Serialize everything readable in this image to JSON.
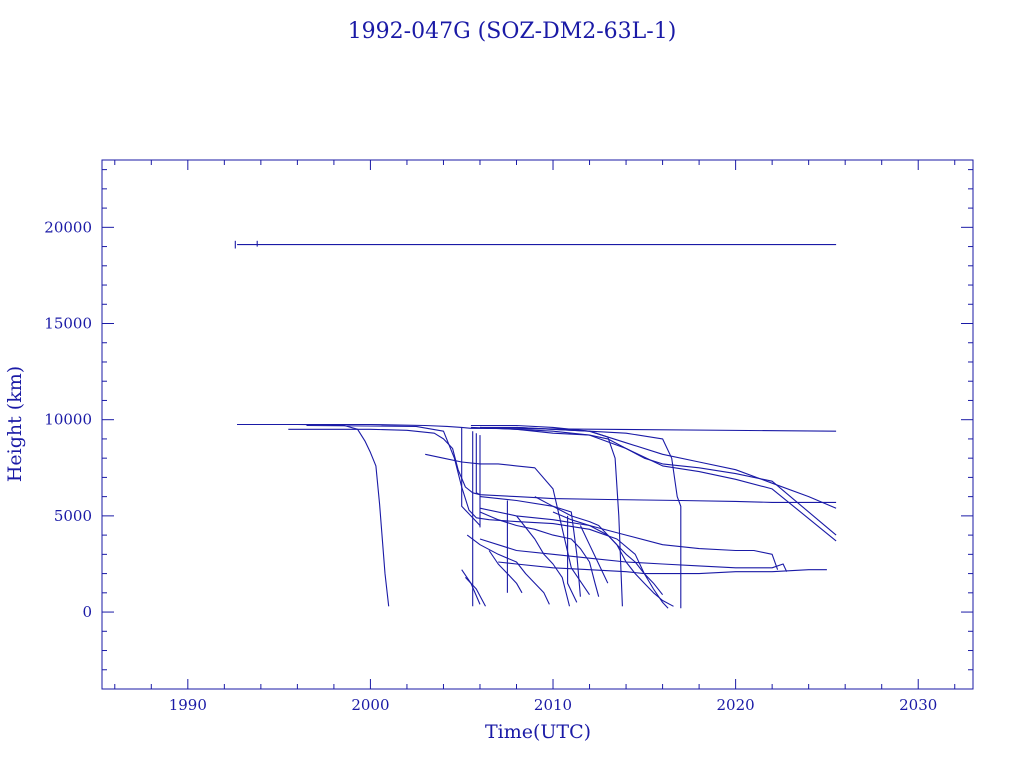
{
  "chart_data": {
    "type": "line",
    "title": "1992-047G (SOZ-DM2-63L-1)",
    "xlabel": "Time(UTC)",
    "ylabel": "Height (km)",
    "xlim": [
      1985.3,
      2033.0
    ],
    "ylim": [
      -4000,
      23500
    ],
    "xticks": [
      1990,
      2000,
      2010,
      2020,
      2030
    ],
    "yticks": [
      0,
      5000,
      10000,
      15000,
      20000
    ],
    "color": "#1a1aa6",
    "series": [
      {
        "x": [
          1992.7,
          2025.5
        ],
        "y": [
          19100,
          19100
        ]
      },
      {
        "x": [
          1992.6,
          1992.6
        ],
        "y": [
          18900,
          19300
        ]
      },
      {
        "x": [
          1993.8,
          1993.8
        ],
        "y": [
          19000,
          19300
        ]
      },
      {
        "x": [
          1992.7,
          1996.0,
          1998.5,
          1999.3,
          1999.7,
          2000.0,
          2000.3,
          2000.5,
          2000.8,
          2001.0
        ],
        "y": [
          9750,
          9750,
          9720,
          9500,
          8900,
          8300,
          7600,
          5600,
          2000,
          300
        ]
      },
      {
        "x": [
          1992.7,
          2000.0,
          2003.0,
          2004.2,
          2005.0,
          2005.5,
          2025.5
        ],
        "y": [
          9750,
          9750,
          9700,
          9650,
          9600,
          9550,
          9400
        ]
      },
      {
        "x": [
          1995.5,
          2000.0,
          2002.0,
          2003.5,
          2004.0,
          2004.5,
          2004.8,
          2005.2,
          2005.6,
          2006.0,
          2008.0,
          2010.0,
          2013.0,
          2017.0,
          2020.0,
          2022.0,
          2025.5
        ],
        "y": [
          9500,
          9500,
          9450,
          9300,
          9000,
          8500,
          7400,
          6500,
          6200,
          6100,
          6000,
          5900,
          5850,
          5800,
          5750,
          5700,
          5700
        ]
      },
      {
        "x": [
          1996.5,
          2002.5,
          2004.0,
          2004.6,
          2005.0,
          2005.4,
          2005.8,
          2006.5,
          2008.0,
          2010.0,
          2012.0,
          2013.5,
          2014.5,
          2015.0,
          2015.5,
          2016.0,
          2016.3
        ],
        "y": [
          9700,
          9650,
          9400,
          8000,
          6500,
          5300,
          4900,
          4800,
          4700,
          4600,
          4300,
          3800,
          3000,
          2000,
          1200,
          500,
          200
        ]
      },
      {
        "x": [
          2003.0,
          2004.0,
          2005.0,
          2006.0,
          2007.0,
          2008.0,
          2009.0,
          2010.0,
          2011.0,
          2012.0
        ],
        "y": [
          8200,
          8000,
          7800,
          7700,
          7700,
          7600,
          7500,
          6400,
          2300,
          900
        ]
      },
      {
        "x": [
          2005.0,
          2005.0,
          2005.5,
          2006.0
        ],
        "y": [
          9600,
          5500,
          5000,
          4500
        ]
      },
      {
        "x": [
          2005.6,
          2005.6
        ],
        "y": [
          9400,
          300
        ]
      },
      {
        "x": [
          2005.8,
          2005.8,
          2006.0
        ],
        "y": [
          9300,
          6200,
          6100
        ]
      },
      {
        "x": [
          2006.0,
          2006.0
        ],
        "y": [
          9200,
          4400
        ]
      },
      {
        "x": [
          2005.0,
          2005.5,
          2006.0
        ],
        "y": [
          2200,
          1500,
          400
        ]
      },
      {
        "x": [
          2005.2,
          2005.8,
          2006.3
        ],
        "y": [
          1800,
          1200,
          300
        ]
      },
      {
        "x": [
          2005.3,
          2006.0,
          2007.0,
          2008.0,
          2008.5,
          2009.0,
          2009.5,
          2009.8
        ],
        "y": [
          4000,
          3500,
          3000,
          2600,
          2000,
          1500,
          1000,
          400
        ]
      },
      {
        "x": [
          2006.5,
          2007.0,
          2007.5,
          2008.0,
          2008.3
        ],
        "y": [
          3200,
          2500,
          2000,
          1500,
          1000
        ]
      },
      {
        "x": [
          2006.0,
          2007.0,
          2008.0,
          2009.0,
          2010.0,
          2011.0,
          2011.5,
          2012.0,
          2012.3,
          2012.5
        ],
        "y": [
          5200,
          4800,
          4500,
          4300,
          4000,
          3800,
          3300,
          2600,
          1500,
          800
        ]
      },
      {
        "x": [
          2007.5,
          2007.5
        ],
        "y": [
          5800,
          1000
        ]
      },
      {
        "x": [
          2008.0,
          2009.0,
          2009.5,
          2010.0,
          2010.5,
          2010.9
        ],
        "y": [
          5000,
          3800,
          3000,
          2500,
          1800,
          300
        ]
      },
      {
        "x": [
          2005.5,
          2008.0,
          2010.0,
          2012.0,
          2014.0,
          2016.0,
          2018.0,
          2020.0,
          2022.0,
          2024.0,
          2025.5
        ],
        "y": [
          9700,
          9700,
          9600,
          9400,
          8800,
          8200,
          7800,
          7400,
          6700,
          6000,
          5400
        ]
      },
      {
        "x": [
          2005.5,
          2008.0,
          2010.0,
          2012.0,
          2013.0,
          2014.0,
          2015.0,
          2016.0,
          2018.0,
          2020.0,
          2022.0,
          2025.5
        ],
        "y": [
          9600,
          9500,
          9300,
          9200,
          9000,
          8500,
          8000,
          7700,
          7500,
          7200,
          6800,
          4000
        ]
      },
      {
        "x": [
          2006.0,
          2008.0,
          2010.0,
          2012.0,
          2014.0,
          2016.0,
          2018.0,
          2020.0,
          2022.0,
          2025.5
        ],
        "y": [
          9600,
          9500,
          9400,
          9200,
          8500,
          7600,
          7300,
          6900,
          6400,
          3700
        ]
      },
      {
        "x": [
          2006.0,
          2008.0,
          2010.0,
          2012.0,
          2014.0,
          2016.0,
          2016.5,
          2016.8,
          2017.0,
          2017.0
        ],
        "y": [
          9600,
          9600,
          9500,
          9400,
          9300,
          9000,
          8000,
          6000,
          5500,
          200
        ]
      },
      {
        "x": [
          2006.0,
          2008.0,
          2010.0,
          2011.0,
          2011.3,
          2011.5
        ],
        "y": [
          6000,
          5800,
          5500,
          5200,
          3000,
          800
        ]
      },
      {
        "x": [
          2006.0,
          2008.0,
          2010.0,
          2012.0,
          2014.0,
          2016.0,
          2018.0,
          2020.0,
          2022.0,
          2022.6,
          2022.8
        ],
        "y": [
          3800,
          3200,
          3000,
          2800,
          2600,
          2500,
          2400,
          2300,
          2300,
          2500,
          2100
        ]
      },
      {
        "x": [
          2007.0,
          2008.0,
          2010.0,
          2012.0,
          2014.0,
          2015.0,
          2016.0,
          2018.0,
          2020.0,
          2022.0,
          2024.0,
          2025.0
        ],
        "y": [
          2600,
          2500,
          2300,
          2200,
          2100,
          2000,
          2000,
          2000,
          2100,
          2100,
          2200,
          2200
        ]
      },
      {
        "x": [
          2008.0,
          2010.0,
          2012.0,
          2013.0,
          2013.4,
          2013.6,
          2013.8
        ],
        "y": [
          9600,
          9500,
          9400,
          9100,
          8000,
          5000,
          300
        ]
      },
      {
        "x": [
          2006.0,
          2008.0,
          2010.0,
          2012.0,
          2014.0,
          2016.0,
          2018.0,
          2020.0,
          2021.0,
          2022.0,
          2022.3
        ],
        "y": [
          5400,
          5000,
          4800,
          4500,
          4000,
          3500,
          3300,
          3200,
          3200,
          3000,
          2200
        ]
      },
      {
        "x": [
          2009.0,
          2010.0,
          2011.0,
          2012.0,
          2012.5,
          2013.0,
          2013.5,
          2014.0,
          2014.5,
          2015.0,
          2015.5,
          2016.0,
          2016.6
        ],
        "y": [
          6000,
          5500,
          5000,
          4700,
          4500,
          4000,
          3500,
          2600,
          2000,
          1500,
          1000,
          600,
          300
        ]
      },
      {
        "x": [
          2010.0,
          2011.0,
          2012.0,
          2013.0,
          2013.5,
          2014.0,
          2014.5,
          2015.0,
          2015.5,
          2016.0
        ],
        "y": [
          5200,
          4800,
          4500,
          4000,
          3500,
          3000,
          2600,
          2000,
          1500,
          900
        ]
      },
      {
        "x": [
          2010.8,
          2010.8,
          2011.3
        ],
        "y": [
          5000,
          1500,
          500
        ]
      },
      {
        "x": [
          2011.5,
          2012.0,
          2012.5,
          2013.0
        ],
        "y": [
          4500,
          3500,
          2500,
          1500
        ]
      }
    ]
  }
}
